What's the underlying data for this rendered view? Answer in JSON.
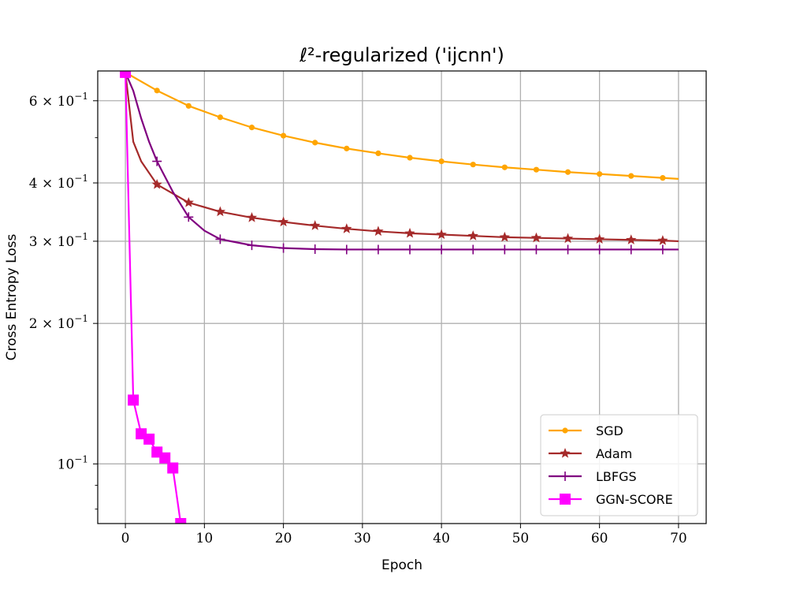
{
  "chart_data": {
    "type": "line",
    "title": "ℓ²-regularized ('ijcnn')",
    "xlabel": "Epoch",
    "ylabel": "Cross Entropy Loss",
    "xlim": [
      -3.5,
      73.5
    ],
    "ylim": [
      0.0745,
      0.695
    ],
    "yscale": "log",
    "grid": true,
    "legend_position": "lower-right",
    "x_ticks": [
      0,
      10,
      20,
      30,
      40,
      50,
      60,
      70
    ],
    "y_major_ticks": [
      {
        "value": 0.1,
        "mantissa": "",
        "exponent": "−1"
      },
      {
        "value": 0.2,
        "mantissa": "2",
        "exponent": "−1"
      },
      {
        "value": 0.3,
        "mantissa": "3",
        "exponent": "−1"
      },
      {
        "value": 0.4,
        "mantissa": "4",
        "exponent": "−1"
      },
      {
        "value": 0.6,
        "mantissa": "6",
        "exponent": "−1"
      }
    ],
    "y_minor_ticks": [
      0.08,
      0.09,
      0.5
    ],
    "series": [
      {
        "name": "SGD",
        "color": "#FFA500",
        "marker": "circle",
        "x": [
          0,
          4,
          8,
          12,
          16,
          20,
          24,
          28,
          32,
          36,
          40,
          44,
          48,
          52,
          56,
          60,
          64,
          68,
          70
        ],
        "y": [
          0.69,
          0.631,
          0.585,
          0.553,
          0.526,
          0.505,
          0.488,
          0.474,
          0.463,
          0.453,
          0.445,
          0.438,
          0.432,
          0.427,
          0.422,
          0.418,
          0.414,
          0.41,
          0.408
        ],
        "marker_x": [
          0,
          4,
          8,
          12,
          16,
          20,
          24,
          28,
          32,
          36,
          40,
          44,
          48,
          52,
          56,
          60,
          64,
          68
        ]
      },
      {
        "name": "Adam",
        "color": "#A52A2A",
        "marker": "star",
        "x": [
          0,
          1,
          2,
          4,
          8,
          12,
          16,
          20,
          24,
          28,
          32,
          36,
          40,
          44,
          48,
          52,
          56,
          60,
          64,
          68,
          70
        ],
        "y": [
          0.69,
          0.49,
          0.445,
          0.397,
          0.363,
          0.347,
          0.337,
          0.33,
          0.324,
          0.319,
          0.315,
          0.312,
          0.31,
          0.308,
          0.306,
          0.305,
          0.304,
          0.303,
          0.302,
          0.301,
          0.3
        ],
        "marker_x": [
          0,
          4,
          8,
          12,
          16,
          20,
          24,
          28,
          32,
          36,
          40,
          44,
          48,
          52,
          56,
          60,
          64,
          68
        ]
      },
      {
        "name": "LBFGS",
        "color": "#800080",
        "marker": "plus",
        "x": [
          0,
          1,
          2,
          3,
          4,
          6,
          8,
          10,
          12,
          16,
          20,
          24,
          28,
          32,
          36,
          40,
          44,
          48,
          52,
          56,
          60,
          64,
          68,
          70
        ],
        "y": [
          0.69,
          0.63,
          0.55,
          0.49,
          0.445,
          0.383,
          0.338,
          0.316,
          0.303,
          0.294,
          0.29,
          0.2885,
          0.288,
          0.288,
          0.288,
          0.288,
          0.288,
          0.288,
          0.288,
          0.288,
          0.288,
          0.288,
          0.288,
          0.288
        ],
        "marker_x": [
          0,
          4,
          8,
          12,
          16,
          20,
          24,
          28,
          32,
          36,
          40,
          44,
          48,
          52,
          56,
          60,
          64,
          68
        ]
      },
      {
        "name": "GGN-SCORE",
        "color": "#FF00FF",
        "marker": "square",
        "x": [
          0,
          1,
          2,
          3,
          4,
          5,
          6,
          7
        ],
        "y": [
          0.69,
          0.137,
          0.116,
          0.113,
          0.106,
          0.103,
          0.098,
          0.0745
        ],
        "marker_x": [
          0,
          1,
          2,
          3,
          4,
          5,
          6,
          7
        ]
      }
    ]
  }
}
